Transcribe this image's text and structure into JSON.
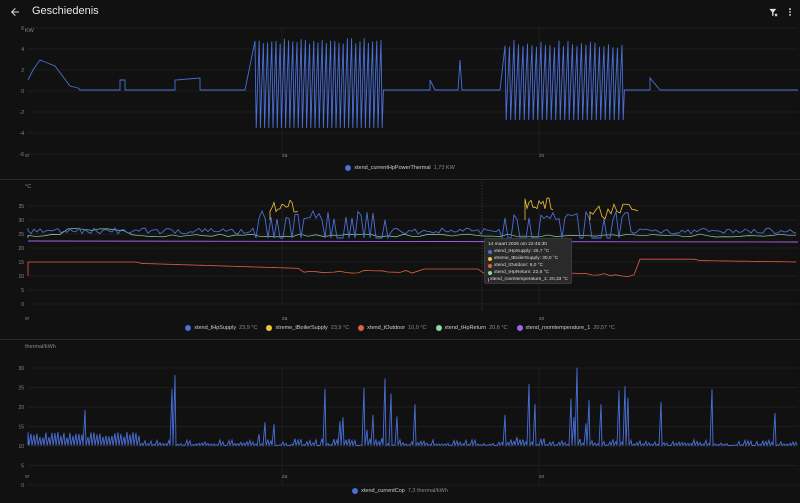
{
  "header": {
    "title": "Geschiedenis",
    "back_icon": "arrow-left-icon",
    "filter_icon": "filter-remove-icon",
    "menu_icon": "dots-vertical-icon"
  },
  "x_labels": [
    "vr",
    "za",
    "zo"
  ],
  "colors": {
    "blue": "#4a6fd6",
    "yellow": "#f0c53c",
    "orange": "#e06040",
    "green": "#8ed6a8",
    "purple": "#a463e8"
  },
  "chart1": {
    "unit": "KW",
    "y_ticks": [
      "6",
      "4",
      "2",
      "0",
      "-2",
      "-4",
      "-6"
    ],
    "legend": [
      {
        "name": "xtend_currentHpPowerThermal",
        "value": "1,73 KW",
        "color": "#4a6fd6"
      }
    ]
  },
  "chart2": {
    "unit": "°C",
    "y_ticks": [
      "35",
      "30",
      "25",
      "20",
      "15",
      "10",
      "5",
      "0"
    ],
    "legend": [
      {
        "name": "xtend_tHpSupply",
        "value": "23,9 °C",
        "color": "#4a6fd6"
      },
      {
        "name": "xtreme_tBoilerSupply",
        "value": "23,9 °C",
        "color": "#f0c53c"
      },
      {
        "name": "xtend_tOutdoor",
        "value": "10,0 °C",
        "color": "#e06040"
      },
      {
        "name": "xtend_tHpReturn",
        "value": "20,6 °C",
        "color": "#8ed6a8"
      },
      {
        "name": "xtend_roomtemperature_1",
        "value": "20,57 °C",
        "color": "#a463e8"
      }
    ]
  },
  "tooltip": {
    "title": "14 maart 2026 om 22:45:30",
    "rows": [
      {
        "label": "xtend_tHpSupply: 25,7 °C",
        "color": "#4a6fd6"
      },
      {
        "label": "xtreme_tBoilerSupply: 30,0 °C",
        "color": "#f0c53c"
      },
      {
        "label": "xtend_tOutdoor: 6,0 °C",
        "color": "#e06040"
      },
      {
        "label": "xtend_tHpReturn: 22,6 °C",
        "color": "#8ed6a8"
      },
      {
        "label": "xtend_roomtemperature_1: 20,33 °C",
        "color": "#a463e8"
      }
    ]
  },
  "chart3": {
    "unit": "thermal/kWh",
    "y_ticks": [
      "30",
      "25",
      "20",
      "15",
      "10",
      "5",
      "0"
    ],
    "legend": [
      {
        "name": "xtend_currentCop",
        "value": "7,3 thermal/kWh",
        "color": "#4a6fd6"
      }
    ]
  }
}
